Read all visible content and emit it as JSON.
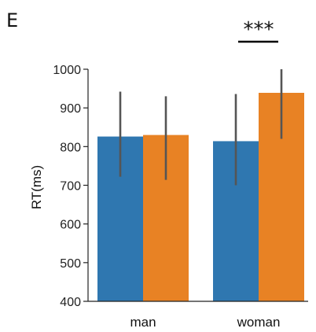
{
  "panel_letter": "E",
  "significance": {
    "label": "***"
  },
  "colors": {
    "series_a": "#2f77b0",
    "series_b": "#e88224",
    "error_bar": "#555555",
    "axis": "#222222"
  },
  "chart_data": {
    "type": "bar",
    "categories": [
      "man",
      "woman"
    ],
    "series": [
      {
        "values": [
          826,
          814
        ],
        "err_low": [
          722,
          700
        ],
        "err_high": [
          942,
          936
        ],
        "color": "#2f77b0"
      },
      {
        "values": [
          830,
          939
        ],
        "err_low": [
          714,
          820
        ],
        "err_high": [
          930,
          1000
        ],
        "color": "#e88224"
      }
    ],
    "title": "",
    "xlabel": "",
    "ylabel": "RT(ms)",
    "ylim": [
      400,
      1000
    ],
    "yticks": [
      400,
      500,
      600,
      700,
      800,
      900,
      1000
    ],
    "grid": false,
    "significance_between": "woman"
  }
}
